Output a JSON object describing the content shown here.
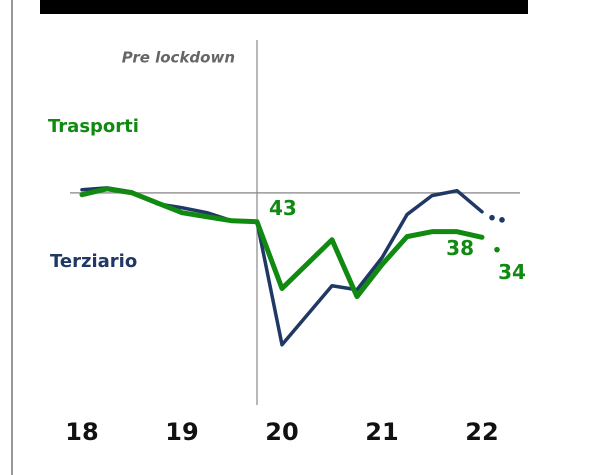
{
  "chart_data": {
    "type": "line",
    "title_hint": null,
    "series": [
      {
        "name": "Terziario",
        "color": "#1f3864",
        "x": [
          18,
          18.25,
          18.5,
          18.75,
          19,
          19.25,
          19.5,
          19.75,
          20,
          20.5,
          20.75,
          21,
          21.25,
          21.5,
          21.75,
          22
        ],
        "values": [
          53.3,
          53.9,
          52.6,
          48.8,
          47.5,
          45.9,
          43.3,
          43,
          3.4,
          22.4,
          21.1,
          31.4,
          45.3,
          51.4,
          53,
          46.2
        ],
        "forecast_x": [
          22.1,
          22.2
        ],
        "forecast": [
          44.3,
          43.6
        ]
      },
      {
        "name": "Trasporti",
        "color": "#108a10",
        "x": [
          18,
          18.25,
          18.5,
          18.75,
          19,
          19.25,
          19.5,
          19.75,
          20,
          20.5,
          20.75,
          21,
          21.25,
          21.5,
          21.75,
          22
        ],
        "values": [
          51.7,
          53.6,
          52.3,
          49.1,
          45.9,
          44.6,
          43.3,
          43,
          21.5,
          37.2,
          18.9,
          29.2,
          38.2,
          39.8,
          39.8,
          38
        ],
        "value_labels": [
          null,
          null,
          null,
          null,
          null,
          null,
          null,
          "43",
          null,
          null,
          null,
          null,
          null,
          null,
          null,
          "38"
        ],
        "forecast_x": [
          22.15
        ],
        "forecast": [
          34
        ],
        "forecast_labels": [
          "34"
        ]
      }
    ],
    "xlim": [
      17.88,
      22.38
    ],
    "xticks": [
      18,
      19,
      20,
      21,
      22
    ],
    "ylim": [
      -16,
      101.5
    ],
    "reference_value": 52.3,
    "divider_x": 19.75,
    "divider_label": "Pre lockdown"
  }
}
